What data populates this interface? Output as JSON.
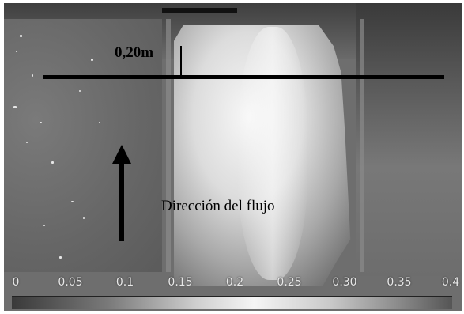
{
  "scale": {
    "label": "0,20m"
  },
  "flow": {
    "label": "Dirección del flujo"
  },
  "colorbar": {
    "ticks": [
      "0",
      "0.05",
      "0.1",
      "0.15",
      "0.2",
      "0.25",
      "0.30",
      "0.35",
      "0.4"
    ]
  }
}
